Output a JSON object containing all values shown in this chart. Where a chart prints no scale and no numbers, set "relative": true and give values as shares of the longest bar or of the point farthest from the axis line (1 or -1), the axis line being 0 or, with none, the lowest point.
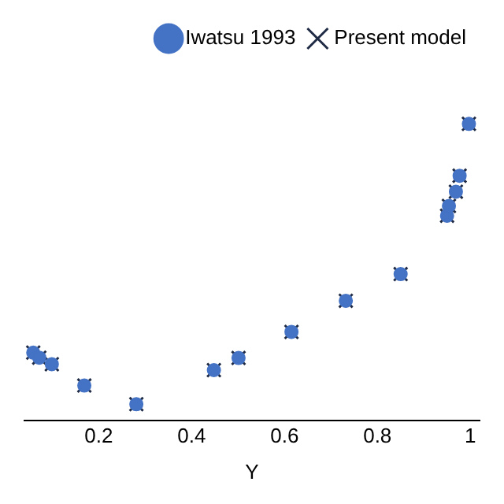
{
  "chart_data": {
    "type": "scatter",
    "xlabel": "Y",
    "relative": true,
    "grid": false,
    "legend": "top right",
    "x": [
      0.059,
      0.072,
      0.099,
      0.169,
      0.281,
      0.448,
      0.501,
      0.615,
      0.732,
      0.85,
      0.95,
      0.954,
      0.969,
      0.977,
      0.997
    ],
    "xlim": [
      0.04,
      1.02
    ],
    "xticks": [
      0.2,
      0.4,
      0.6,
      0.8,
      1
    ],
    "series": [
      {
        "name": "Iwatsu 1993",
        "color": "#4472c4",
        "marker": "circle",
        "values": [
          0.228,
          0.211,
          0.189,
          0.117,
          0.054,
          0.169,
          0.21,
          0.298,
          0.403,
          0.493,
          0.69,
          0.723,
          0.771,
          0.825,
          1
        ]
      },
      {
        "name": "Present model",
        "color": "#1f2a44",
        "marker": "cross",
        "values": [
          0.228,
          0.211,
          0.189,
          0.117,
          0.054,
          0.169,
          0.21,
          0.298,
          0.403,
          0.493,
          0.69,
          0.723,
          0.771,
          0.825,
          1
        ]
      }
    ]
  }
}
